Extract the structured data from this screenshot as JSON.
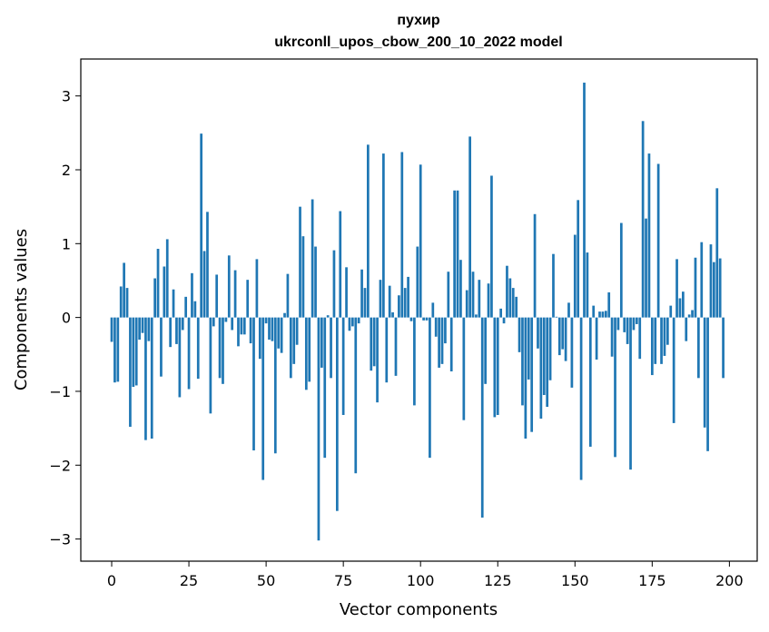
{
  "chart_data": {
    "type": "bar",
    "title": "пухир",
    "subtitle": "ukrconll_upos_cbow_200_10_2022 model",
    "xlabel": "Vector components",
    "ylabel": "Components values",
    "xlim": [
      -10,
      209
    ],
    "ylim": [
      -3.3,
      3.5
    ],
    "xticks": [
      0,
      25,
      50,
      75,
      100,
      125,
      150,
      175,
      200
    ],
    "yticks": [
      -3,
      -2,
      -1,
      0,
      1,
      2,
      3
    ],
    "ytick_labels": [
      "−3",
      "−2",
      "−1",
      "0",
      "1",
      "2",
      "3"
    ],
    "bar_color": "#1f77b4",
    "grid": false,
    "values": [
      -0.33,
      -0.88,
      -0.87,
      0.42,
      0.74,
      0.4,
      -1.48,
      -0.94,
      -0.92,
      -0.3,
      -0.21,
      -1.66,
      -0.32,
      -1.64,
      0.53,
      0.93,
      -0.8,
      0.69,
      1.06,
      -0.4,
      0.38,
      -0.36,
      -1.08,
      -0.17,
      0.28,
      -0.97,
      0.6,
      0.22,
      -0.83,
      2.49,
      0.9,
      1.43,
      -1.3,
      -0.12,
      0.58,
      -0.82,
      -0.9,
      -0.06,
      0.84,
      -0.17,
      0.64,
      -0.39,
      -0.23,
      -0.23,
      0.51,
      -0.35,
      -1.8,
      0.79,
      -0.56,
      -2.2,
      -0.08,
      -0.3,
      -0.32,
      -1.84,
      -0.42,
      -0.48,
      0.06,
      0.59,
      -0.82,
      -0.63,
      -0.37,
      1.5,
      1.1,
      -0.98,
      -0.87,
      1.6,
      0.96,
      -3.02,
      -0.68,
      -1.9,
      0.03,
      -0.82,
      0.91,
      -2.62,
      1.44,
      -1.32,
      0.68,
      -0.18,
      -0.12,
      -2.11,
      -0.08,
      0.65,
      0.4,
      2.34,
      -0.72,
      -0.66,
      -1.15,
      0.51,
      2.22,
      -0.88,
      0.43,
      0.07,
      -0.79,
      0.3,
      2.24,
      0.4,
      0.55,
      -0.05,
      -1.19,
      0.96,
      2.07,
      -0.04,
      -0.04,
      -1.9,
      0.2,
      -0.26,
      -0.68,
      -0.63,
      -0.35,
      0.62,
      -0.73,
      1.72,
      1.72,
      0.78,
      -1.39,
      0.37,
      2.45,
      0.62,
      0.04,
      0.51,
      -2.71,
      -0.9,
      0.46,
      1.92,
      -1.35,
      -1.32,
      0.12,
      -0.08,
      0.7,
      0.53,
      0.4,
      0.28,
      -0.47,
      -1.19,
      -1.64,
      -0.84,
      -1.55,
      1.4,
      -0.42,
      -1.37,
      -1.05,
      -1.21,
      -0.85,
      0.86,
      0.01,
      -0.51,
      -0.43,
      -0.59,
      0.2,
      -0.95,
      1.12,
      1.59,
      -2.2,
      3.18,
      0.88,
      -1.75,
      0.16,
      -0.57,
      0.08,
      0.08,
      0.09,
      0.34,
      -0.53,
      -1.89,
      -0.17,
      1.28,
      -0.2,
      -0.36,
      -2.06,
      -0.17,
      -0.09,
      -0.56,
      2.66,
      1.34,
      2.22,
      -0.78,
      -0.63,
      2.08,
      -0.63,
      -0.52,
      -0.37,
      0.16,
      -1.43,
      0.79,
      0.26,
      0.35,
      -0.32,
      0.04,
      0.1,
      0.81,
      -0.82,
      1.02,
      -1.49,
      -1.81,
      0.99,
      0.75,
      1.75,
      0.8,
      -0.82
    ]
  }
}
